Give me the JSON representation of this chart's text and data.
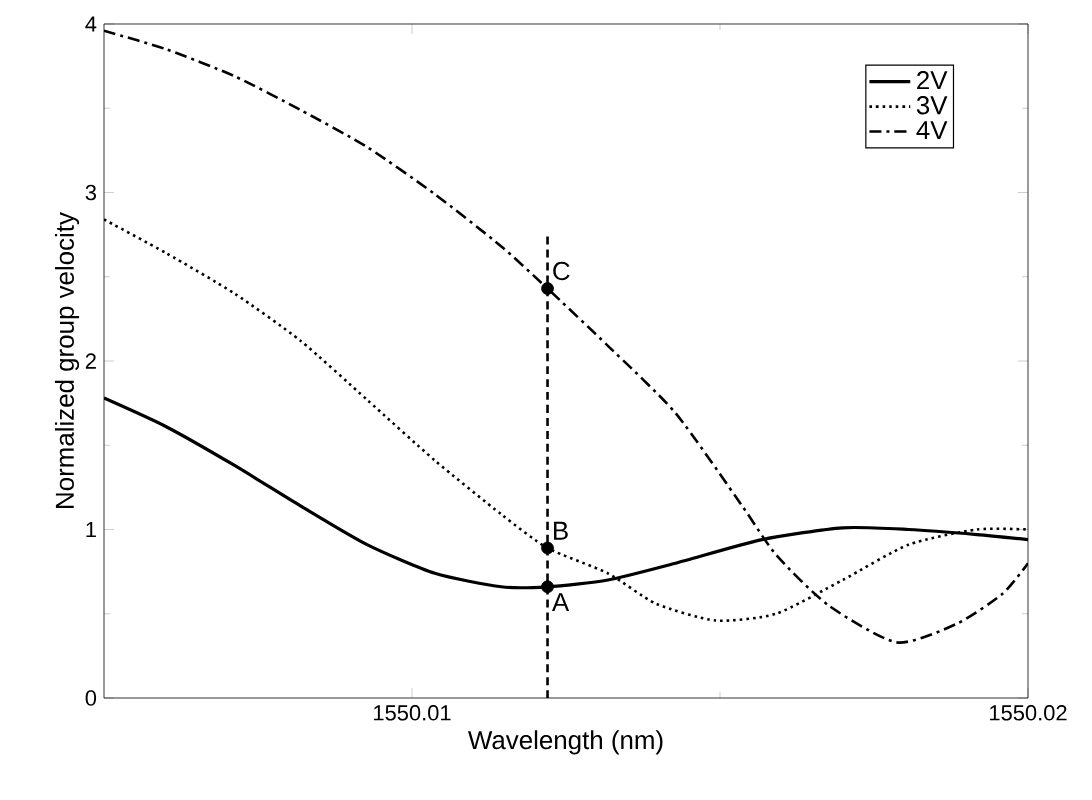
{
  "chart_data": {
    "type": "line",
    "xlabel": "Wavelength (nm)",
    "ylabel": "Normalized group velocity",
    "xlim": [
      1550.005,
      1550.02
    ],
    "ylim": [
      0,
      4
    ],
    "xticks": [
      1550.01,
      {
        "value": 1550.015,
        "label": null
      },
      1550.02
    ],
    "yticks": [
      0,
      {
        "value": 0.5,
        "label": null
      },
      1,
      {
        "value": 1.5,
        "label": null
      },
      2,
      {
        "value": 2.5,
        "label": null
      },
      3,
      {
        "value": 3.5,
        "label": null
      },
      4
    ],
    "legend": "top right",
    "grid": false,
    "series": [
      {
        "name": "2V",
        "color": "#000000",
        "line_style": "solid",
        "x": [
          1550.005,
          1550.00601,
          1550.00712,
          1550.00819,
          1550.00927,
          1550.01037,
          1550.01145,
          1550.0122,
          1550.01318,
          1550.01428,
          1550.01568,
          1550.01699,
          1550.01806,
          1550.01917,
          1550.02
        ],
        "values": [
          1.78,
          1.61,
          1.38,
          1.14,
          0.91,
          0.74,
          0.66,
          0.66,
          0.7,
          0.8,
          0.94,
          1.01,
          1.0,
          0.97,
          0.94
        ]
      },
      {
        "name": "3V",
        "color": "#000000",
        "line_style": "dotted",
        "x": [
          1550.005,
          1550.00601,
          1550.00712,
          1550.00819,
          1550.00927,
          1550.01037,
          1550.01145,
          1550.0122,
          1550.01318,
          1550.01396,
          1550.01493,
          1550.01591,
          1550.01699,
          1550.01806,
          1550.01917,
          1550.02
        ],
        "values": [
          2.84,
          2.64,
          2.4,
          2.12,
          1.77,
          1.41,
          1.09,
          0.89,
          0.74,
          0.56,
          0.46,
          0.5,
          0.7,
          0.91,
          1.0,
          1.0
        ]
      },
      {
        "name": "4V",
        "color": "#000000",
        "line_style": "dashdot",
        "x": [
          1550.005,
          1550.00601,
          1550.00712,
          1550.00819,
          1550.00927,
          1550.01037,
          1550.01145,
          1550.0122,
          1550.01318,
          1550.01428,
          1550.01536,
          1550.01591,
          1550.01676,
          1550.01787,
          1550.01884,
          1550.01959,
          1550.02
        ],
        "values": [
          3.96,
          3.85,
          3.69,
          3.49,
          3.27,
          2.99,
          2.68,
          2.43,
          2.09,
          1.69,
          1.14,
          0.85,
          0.55,
          0.33,
          0.44,
          0.62,
          0.8
        ]
      },
      {
        "type": "line",
        "color": "#000000",
        "line_style": "dashed",
        "x": [
          1550.0122,
          1550.0122
        ],
        "values": [
          0,
          2.74
        ]
      },
      {
        "type": "scatter",
        "color": "#000000",
        "marker": "circle",
        "x": [
          1550.0122,
          1550.0122,
          1550.0122
        ],
        "values": [
          0.66,
          0.89,
          2.43
        ]
      }
    ],
    "annotations": [
      "A",
      "B",
      "C"
    ]
  }
}
